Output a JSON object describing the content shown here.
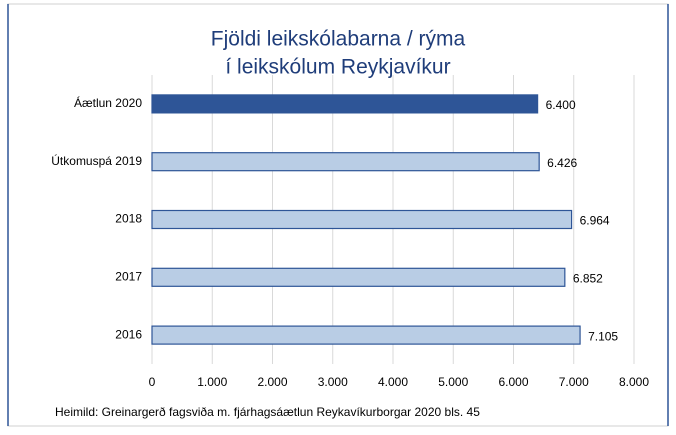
{
  "chart_data": {
    "type": "barh",
    "title": [
      "Fjöldi leikskólabarna / rýma",
      "í leikskólum Reykjavíkur"
    ],
    "categories": [
      "Áætlun 2020",
      "Útkomuspá 2019",
      "2018",
      "2017",
      "2016"
    ],
    "values": [
      6400,
      6426,
      6964,
      6852,
      7105
    ],
    "value_labels": [
      "6.400",
      "6.426",
      "6.964",
      "6.852",
      "7.105"
    ],
    "colors": [
      "#2e5597",
      "#b9cde5",
      "#b9cde5",
      "#b9cde5",
      "#b9cde5"
    ],
    "edge_color": "#2e5597",
    "xlim": [
      0,
      8000
    ],
    "xticks": [
      0,
      {
        "value": 1000,
        "label": "1.000"
      },
      {
        "value": 2000,
        "label": "2.000"
      },
      {
        "value": 3000,
        "label": "3.000"
      },
      {
        "value": 4000,
        "label": "4.000"
      },
      {
        "value": 5000,
        "label": "5.000"
      },
      {
        "value": 6000,
        "label": "6.000"
      },
      {
        "value": 7000,
        "label": "7.000"
      },
      {
        "value": 8000,
        "label": "8.000"
      }
    ],
    "grid": true,
    "source": "Heimild: Greinargerð fagsviða m. fjárhagsáætlun Reykavíkurborgar 2020 bls. 45"
  }
}
